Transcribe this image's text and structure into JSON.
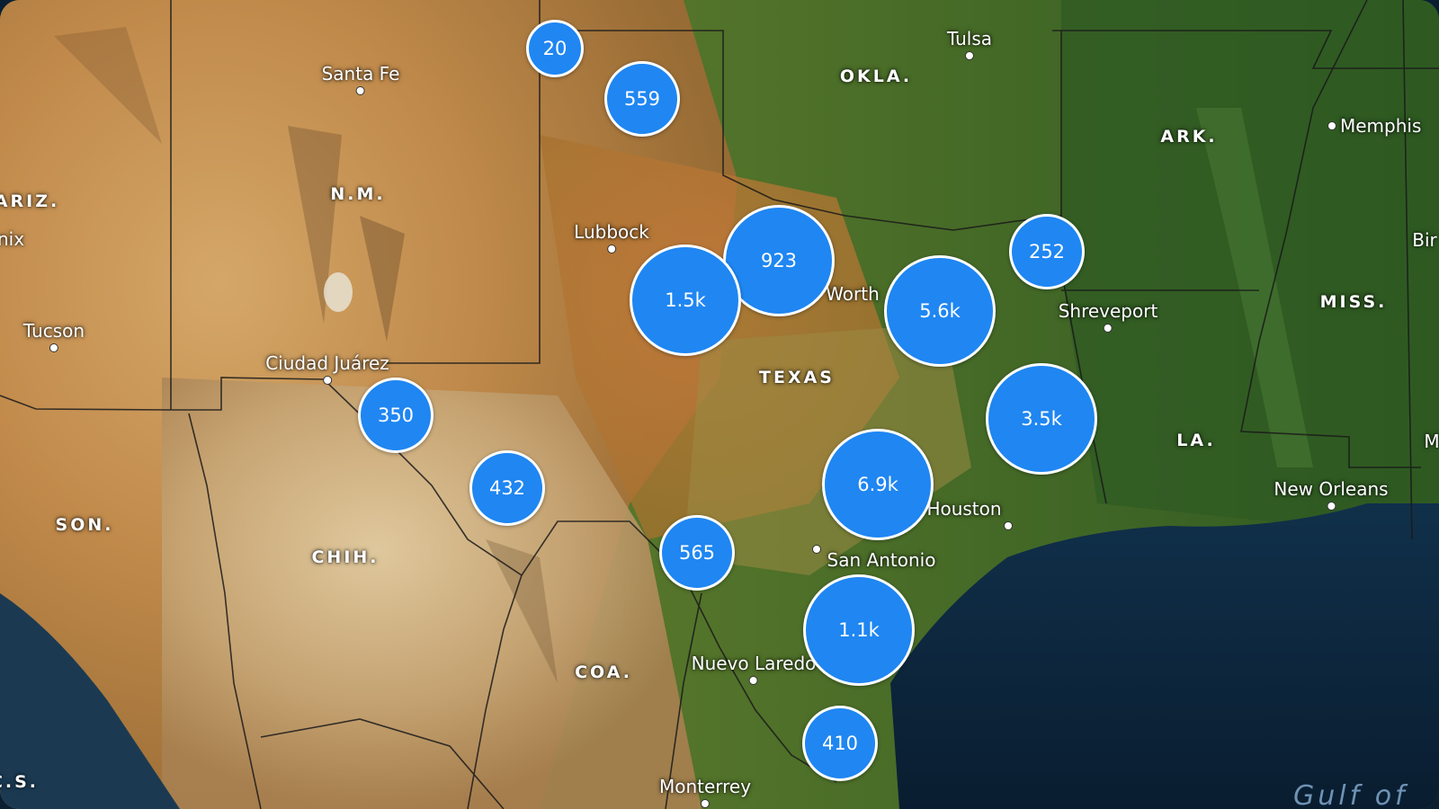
{
  "map": {
    "style": "satellite",
    "colors": {
      "cluster_fill": "#1f86f2",
      "cluster_stroke": "#ffffff",
      "water": "#0b1f33",
      "border": "#1a1a1a"
    }
  },
  "state_labels": [
    {
      "id": "okla",
      "text": "OKLA."
    },
    {
      "id": "ark",
      "text": "ARK."
    },
    {
      "id": "ariz",
      "text": "ARIZ."
    },
    {
      "id": "nm",
      "text": "N.M."
    },
    {
      "id": "miss",
      "text": "MISS."
    },
    {
      "id": "texas",
      "text": "TEXAS"
    },
    {
      "id": "la",
      "text": "LA."
    },
    {
      "id": "son",
      "text": "SON."
    },
    {
      "id": "chih",
      "text": "CHIH."
    },
    {
      "id": "coa",
      "text": "COA."
    },
    {
      "id": "bcs",
      "text": "C.S."
    }
  ],
  "cities": [
    {
      "id": "tulsa",
      "text": "Tulsa"
    },
    {
      "id": "santa-fe",
      "text": "Santa Fe"
    },
    {
      "id": "memphis",
      "text": "Memphis"
    },
    {
      "id": "phoenix",
      "text": "nix"
    },
    {
      "id": "birmingham",
      "text": "Bir"
    },
    {
      "id": "lubbock",
      "text": "Lubbock"
    },
    {
      "id": "fort-worth",
      "text": "Worth"
    },
    {
      "id": "shreveport",
      "text": "Shreveport"
    },
    {
      "id": "tucson",
      "text": "Tucson"
    },
    {
      "id": "ciudad-juarez",
      "text": "Ciudad Juárez"
    },
    {
      "id": "houston",
      "text": "Houston"
    },
    {
      "id": "san-antonio",
      "text": "San Antonio"
    },
    {
      "id": "new-orleans",
      "text": "New Orleans"
    },
    {
      "id": "nuevo-laredo",
      "text": "Nuevo Laredo"
    },
    {
      "id": "monterrey",
      "text": "Monterrey"
    },
    {
      "id": "mobile",
      "text": "M"
    }
  ],
  "water_labels": [
    {
      "id": "gulf",
      "text": "Gulf of"
    }
  ],
  "clusters": [
    {
      "id": "c20",
      "label": "20",
      "count": 20
    },
    {
      "id": "c559",
      "label": "559",
      "count": 559
    },
    {
      "id": "c923",
      "label": "923",
      "count": 923
    },
    {
      "id": "c15k",
      "label": "1.5k",
      "count": 1500
    },
    {
      "id": "c252",
      "label": "252",
      "count": 252
    },
    {
      "id": "c56k",
      "label": "5.6k",
      "count": 5600
    },
    {
      "id": "c350",
      "label": "350",
      "count": 350
    },
    {
      "id": "c35k",
      "label": "3.5k",
      "count": 3500
    },
    {
      "id": "c432",
      "label": "432",
      "count": 432
    },
    {
      "id": "c69k",
      "label": "6.9k",
      "count": 6900
    },
    {
      "id": "c565",
      "label": "565",
      "count": 565
    },
    {
      "id": "c11k",
      "label": "1.1k",
      "count": 1100
    },
    {
      "id": "c410",
      "label": "410",
      "count": 410
    }
  ]
}
